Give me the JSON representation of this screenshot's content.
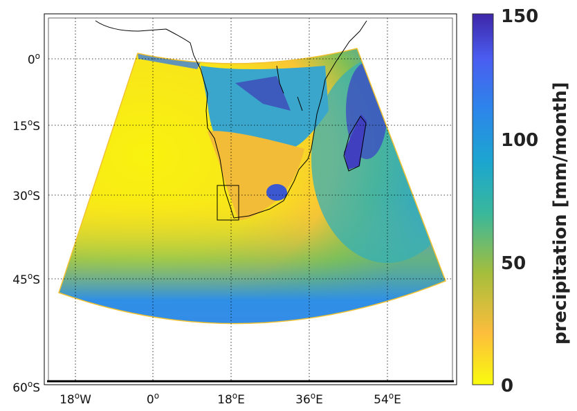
{
  "map": {
    "projection": "conic",
    "lat_labels": [
      {
        "value": "0",
        "text": "0",
        "sup": "o",
        "suffix": ""
      },
      {
        "value": "15S",
        "text": "15",
        "sup": "o",
        "suffix": "S"
      },
      {
        "value": "30S",
        "text": "30",
        "sup": "o",
        "suffix": "S"
      },
      {
        "value": "45S",
        "text": "45",
        "sup": "o",
        "suffix": "S"
      },
      {
        "value": "60S",
        "text": "60",
        "sup": "o",
        "suffix": "S"
      }
    ],
    "lon_labels": [
      {
        "value": "18W",
        "text": "18",
        "sup": "o",
        "suffix": "W"
      },
      {
        "value": "0",
        "text": "0",
        "sup": "o",
        "suffix": ""
      },
      {
        "value": "18E",
        "text": "18",
        "sup": "o",
        "suffix": "E"
      },
      {
        "value": "36E",
        "text": "36",
        "sup": "o",
        "suffix": "E"
      },
      {
        "value": "54E",
        "text": "54",
        "sup": "o",
        "suffix": "E"
      }
    ],
    "grid": "dotted",
    "highlight_box": "western South Africa"
  },
  "colorbar": {
    "label": "precipitation [mm/month]",
    "ticks": [
      "150",
      "100",
      "50",
      "0"
    ],
    "range": [
      0,
      150
    ],
    "colormap": "parula",
    "colors": [
      "#f9fb0e",
      "#fdbd3c",
      "#a5be3c",
      "#3ab89a",
      "#1ca6cf",
      "#2c86ea",
      "#4a5df0",
      "#3e26a8"
    ]
  }
}
